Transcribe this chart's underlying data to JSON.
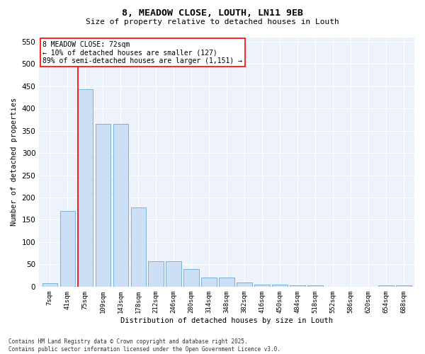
{
  "title1": "8, MEADOW CLOSE, LOUTH, LN11 9EB",
  "title2": "Size of property relative to detached houses in Louth",
  "xlabel": "Distribution of detached houses by size in Louth",
  "ylabel": "Number of detached properties",
  "bar_labels": [
    "7sqm",
    "41sqm",
    "75sqm",
    "109sqm",
    "143sqm",
    "178sqm",
    "212sqm",
    "246sqm",
    "280sqm",
    "314sqm",
    "348sqm",
    "382sqm",
    "416sqm",
    "450sqm",
    "484sqm",
    "518sqm",
    "552sqm",
    "586sqm",
    "620sqm",
    "654sqm",
    "688sqm"
  ],
  "bar_values": [
    8,
    170,
    443,
    365,
    365,
    178,
    57,
    57,
    40,
    20,
    20,
    10,
    5,
    5,
    3,
    3,
    0,
    0,
    0,
    3,
    3
  ],
  "annotation_text": "8 MEADOW CLOSE: 72sqm\n← 10% of detached houses are smaller (127)\n89% of semi-detached houses are larger (1,151) →",
  "bar_color": "#cddff5",
  "bar_edge_color": "#7ab4d8",
  "vline_color": "red",
  "background_color": "#eef2fb",
  "footer": "Contains HM Land Registry data © Crown copyright and database right 2025.\nContains public sector information licensed under the Open Government Licence v3.0.",
  "ylim": [
    0,
    560
  ],
  "yticks": [
    0,
    50,
    100,
    150,
    200,
    250,
    300,
    350,
    400,
    450,
    500,
    550
  ],
  "vline_bin_index": 2,
  "figwidth": 6.0,
  "figheight": 5.0,
  "dpi": 100
}
